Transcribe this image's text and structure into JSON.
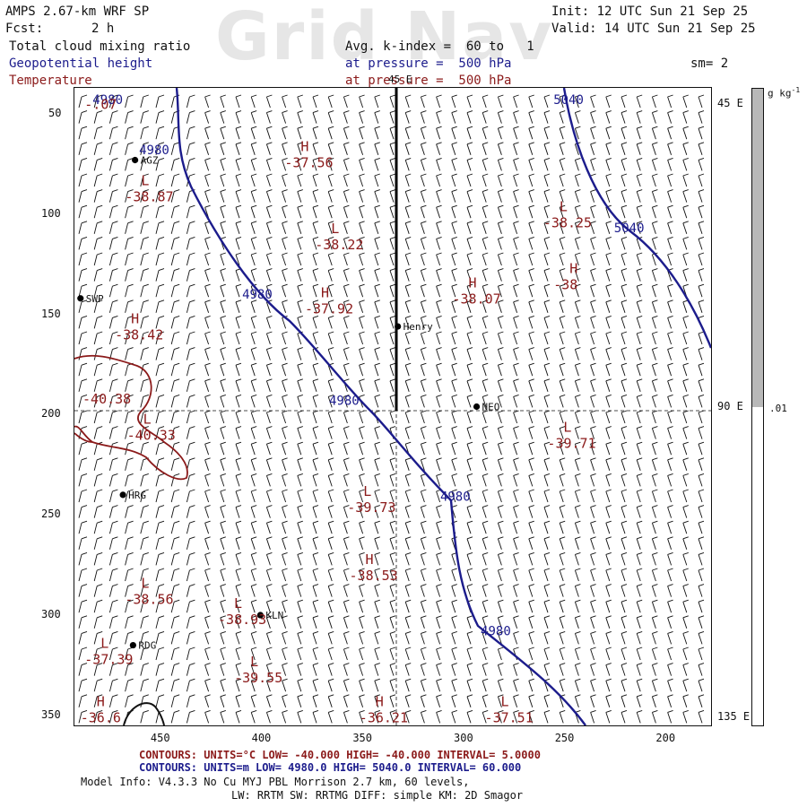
{
  "header": {
    "model_line": "AMPS 2.67-km WRF SP",
    "init_line": "Init: 12 UTC Sun 21 Sep 25",
    "fcst_label": "Fcst:",
    "fcst_value": "2 h",
    "valid_line": "Valid: 14 UTC Sun 21 Sep 25",
    "watermark": "Grid Nav",
    "fields": [
      {
        "name": "Total cloud mixing ratio",
        "color": "#111111"
      },
      {
        "name": "Geopotential height",
        "color": "#1c1c8c"
      },
      {
        "name": "Temperature",
        "color": "#8b1a1a"
      }
    ],
    "avg_line": "Avg. k-index =  60 to   1",
    "pressure_line_blue": "at pressure =  500 hPa",
    "pressure_line_red": "at pressure =  500 hPa",
    "smoothing": "sm= 2"
  },
  "axes": {
    "y_ticks": [
      {
        "label": "50",
        "value": 50
      },
      {
        "label": "100",
        "value": 100
      },
      {
        "label": "150",
        "value": 150
      },
      {
        "label": "200",
        "value": 200
      },
      {
        "label": "250",
        "value": 250
      },
      {
        "label": "300",
        "value": 300
      },
      {
        "label": "350",
        "value": 350
      }
    ],
    "x_ticks": [
      {
        "label": "450",
        "value": 450
      },
      {
        "label": "400",
        "value": 400
      },
      {
        "label": "350",
        "value": 350
      },
      {
        "label": "300",
        "value": 300
      },
      {
        "label": "250",
        "value": 250
      },
      {
        "label": "200",
        "value": 200
      }
    ],
    "lon_labels": [
      {
        "label": "45 E",
        "row": 45
      },
      {
        "label": "90 E",
        "row": 196
      },
      {
        "label": "135 E",
        "row": 351
      }
    ],
    "top_lon_label": "45 E",
    "x_range": [
      493,
      178
    ],
    "y_range": [
      37,
      355
    ]
  },
  "colorbar": {
    "units": "g kg",
    "units_exp": "-1",
    "tick_label": ".01",
    "fill_fraction": 0.5,
    "fill_color": "#b8b8b8"
  },
  "stations": [
    {
      "name": "AGZ",
      "x": 463,
      "y": 73
    },
    {
      "name": "SWP",
      "x": 490,
      "y": 142
    },
    {
      "name": "Henry",
      "x": 333,
      "y": 156
    },
    {
      "name": "NEO",
      "x": 294,
      "y": 196
    },
    {
      "name": "HRG",
      "x": 469,
      "y": 240
    },
    {
      "name": "KLN",
      "x": 401,
      "y": 300
    },
    {
      "name": "RDG",
      "x": 464,
      "y": 315
    }
  ],
  "temperature_extrema": [
    {
      "mark": "",
      "value": "-.07",
      "x": 488,
      "y": 43
    },
    {
      "mark": "H",
      "value": "-37.56",
      "x": 389,
      "y": 72
    },
    {
      "mark": "L",
      "value": "-38.87",
      "x": 468,
      "y": 89
    },
    {
      "mark": "L",
      "value": "-38.25",
      "x": 261,
      "y": 102
    },
    {
      "mark": "L",
      "value": "-38.22",
      "x": 374,
      "y": 113
    },
    {
      "mark": "H",
      "value": "-38",
      "x": 256,
      "y": 133
    },
    {
      "mark": "H",
      "value": "-38.07",
      "x": 306,
      "y": 140
    },
    {
      "mark": "H",
      "value": "-37.92",
      "x": 379,
      "y": 145
    },
    {
      "mark": "H",
      "value": "-38.42",
      "x": 473,
      "y": 158
    },
    {
      "mark": "",
      "value": "-40.38",
      "x": 489,
      "y": 190
    },
    {
      "mark": "L",
      "value": "-40.33",
      "x": 467,
      "y": 208
    },
    {
      "mark": "L",
      "value": "-39.71",
      "x": 259,
      "y": 212
    },
    {
      "mark": "L",
      "value": "-39.73",
      "x": 358,
      "y": 244
    },
    {
      "mark": "H",
      "value": "-38.53",
      "x": 357,
      "y": 278
    },
    {
      "mark": "L",
      "value": "-38.56",
      "x": 468,
      "y": 290
    },
    {
      "mark": "L",
      "value": "-38.93",
      "x": 422,
      "y": 300
    },
    {
      "mark": "L",
      "value": "-37.39",
      "x": 488,
      "y": 320
    },
    {
      "mark": "L",
      "value": "-39.55",
      "x": 414,
      "y": 329
    },
    {
      "mark": "H",
      "value": "-36.6",
      "x": 490,
      "y": 349
    },
    {
      "mark": "H",
      "value": "-36.21",
      "x": 352,
      "y": 349
    },
    {
      "mark": "L",
      "value": "-37.51",
      "x": 290,
      "y": 349
    }
  ],
  "height_labels": [
    {
      "value": "4980",
      "x": 484,
      "y": 45
    },
    {
      "value": "4980",
      "x": 461,
      "y": 70
    },
    {
      "value": "4980",
      "x": 410,
      "y": 142
    },
    {
      "value": "4980",
      "x": 367,
      "y": 195
    },
    {
      "value": "4980",
      "x": 312,
      "y": 243
    },
    {
      "value": "4980",
      "x": 292,
      "y": 310
    },
    {
      "value": "5040",
      "x": 256,
      "y": 45
    },
    {
      "value": "5040",
      "x": 226,
      "y": 109
    }
  ],
  "contour_info": {
    "red_line": "CONTOURS:  UNITS=°C  LOW= -40.000         HIGH= -40.000         INTERVAL=   5.0000",
    "blue_line": "CONTOURS:  UNITS=m  LOW=   4980.0          HIGH=   5040.0          INTERVAL=   60.000"
  },
  "model_info": {
    "line1": "Model Info: V4.3.3    No Cu    MYJ PBL  Morrison           2.7 km,  60 levels,",
    "line2": "LW: RRTM SW: RRTMG    DIFF: simple KM: 2D Smagor"
  },
  "colors": {
    "height": "#1c1c8c",
    "temperature": "#8b1a1a",
    "barb": "#111111"
  }
}
